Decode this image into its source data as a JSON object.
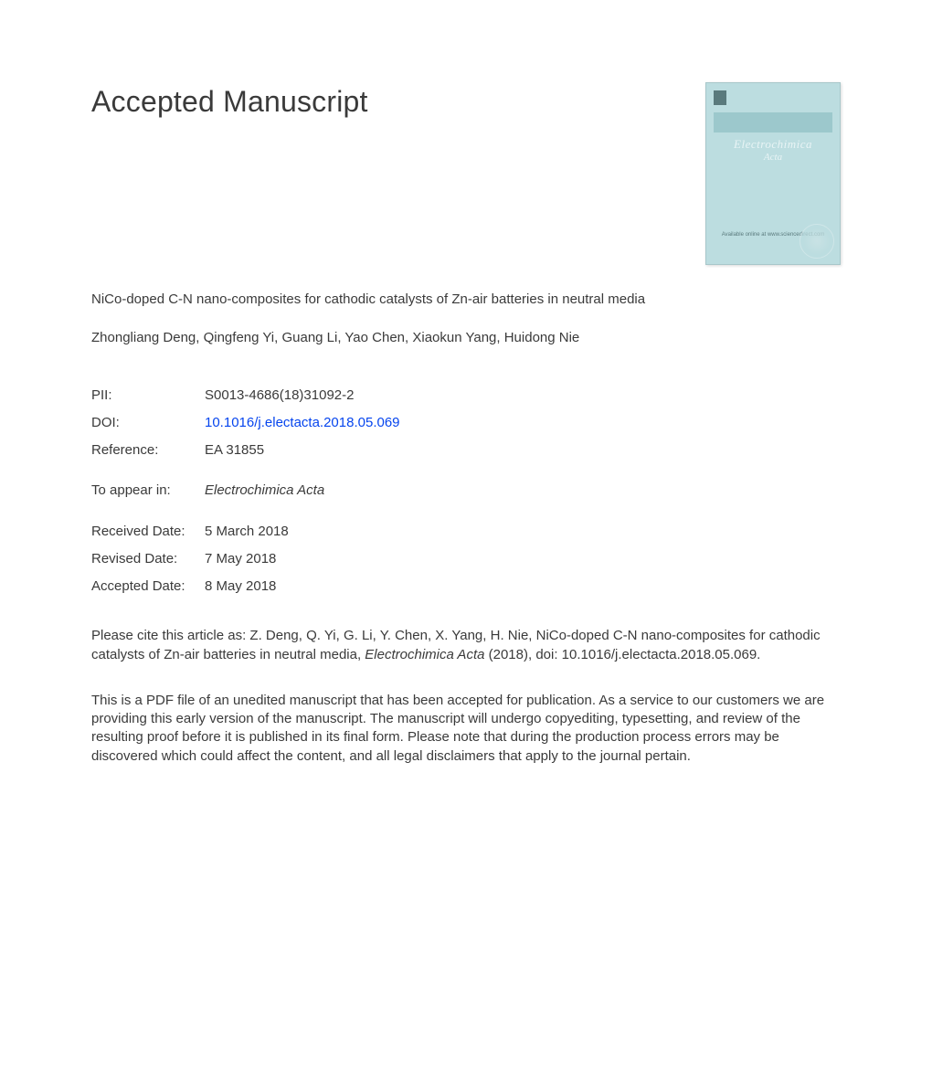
{
  "heading": "Accepted Manuscript",
  "title": "NiCo-doped C-N nano-composites for cathodic catalysts of Zn-air batteries in neutral media",
  "authors": "Zhongliang Deng, Qingfeng Yi, Guang Li, Yao Chen, Xiaokun Yang, Huidong Nie",
  "meta": {
    "pii_label": "PII:",
    "pii_value": "S0013-4686(18)31092-2",
    "doi_label": "DOI:",
    "doi_value": "10.1016/j.electacta.2018.05.069",
    "ref_label": "Reference:",
    "ref_value": "EA 31855",
    "appear_label": "To appear in:",
    "appear_value": "Electrochimica Acta",
    "received_label": "Received Date:",
    "received_value": "5 March 2018",
    "revised_label": "Revised Date:",
    "revised_value": "7 May 2018",
    "accepted_label": "Accepted Date:",
    "accepted_value": "8 May 2018"
  },
  "citation": {
    "prefix": "Please cite this article as: Z. Deng, Q. Yi, G. Li, Y. Chen, X. Yang, H. Nie, NiCo-doped C-N nano-composites for cathodic catalysts of Zn-air batteries in neutral media, ",
    "journal": "Electrochimica Acta",
    "suffix": " (2018), doi: 10.1016/j.electacta.2018.05.069."
  },
  "disclaimer": "This is a PDF file of an unedited manuscript that has been accepted for publication. As a service to our customers we are providing this early version of the manuscript. The manuscript will undergo copyediting, typesetting, and review of the resulting proof before it is published in its final form. Please note that during the production process errors may be discovered which could affect the content, and all legal disclaimers that apply to the journal pertain.",
  "cover": {
    "journal_line1": "Electrochimica",
    "journal_line2": "Acta",
    "provider": "Available online at www.sciencedirect.com"
  },
  "colors": {
    "text": "#3a3a3a",
    "link": "#0645ee",
    "cover_bg": "#bcdde0",
    "cover_border": "#a8c7ca",
    "cover_bar": "#9cc8cc",
    "cover_text": "#e8f4f5",
    "background": "#ffffff"
  },
  "typography": {
    "heading_fontsize": 32,
    "body_fontsize": 15,
    "font_family": "Arial, Helvetica, sans-serif"
  }
}
